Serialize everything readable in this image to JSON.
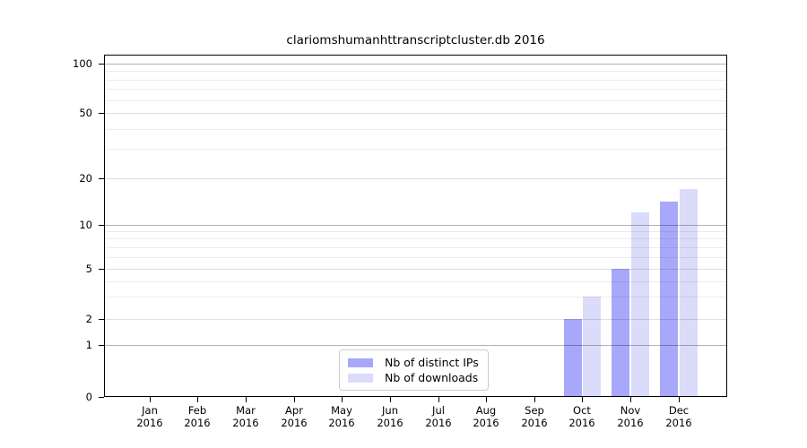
{
  "chart_data": {
    "type": "bar",
    "title": "clariomshumanhttranscriptcluster.db 2016",
    "x_year": "2016",
    "categories": [
      "Jan",
      "Feb",
      "Mar",
      "Apr",
      "May",
      "Jun",
      "Jul",
      "Aug",
      "Sep",
      "Oct",
      "Nov",
      "Dec"
    ],
    "series": [
      {
        "name": "Nb of distinct IPs",
        "color": "#a8a8fa",
        "values": [
          0,
          0,
          0,
          0,
          0,
          0,
          0,
          0,
          0,
          2,
          5,
          14
        ]
      },
      {
        "name": "Nb of downloads",
        "color": "#dbdbfa",
        "values": [
          0,
          0,
          0,
          0,
          0,
          0,
          0,
          0,
          0,
          3,
          12,
          17
        ]
      }
    ],
    "yticks": [
      0,
      1,
      2,
      5,
      10,
      20,
      50,
      100
    ],
    "decade_gridlines": [
      1,
      10,
      100
    ],
    "minor_gridlines": [
      3,
      4,
      6,
      7,
      8,
      9,
      30,
      40,
      60,
      70,
      80,
      90
    ],
    "ylim": [
      0,
      120
    ],
    "scale": "log above 1, linear 0-1",
    "grid": true,
    "legend_position": "bottom-center",
    "background": "#ffffff",
    "spine_color": "#000000"
  }
}
